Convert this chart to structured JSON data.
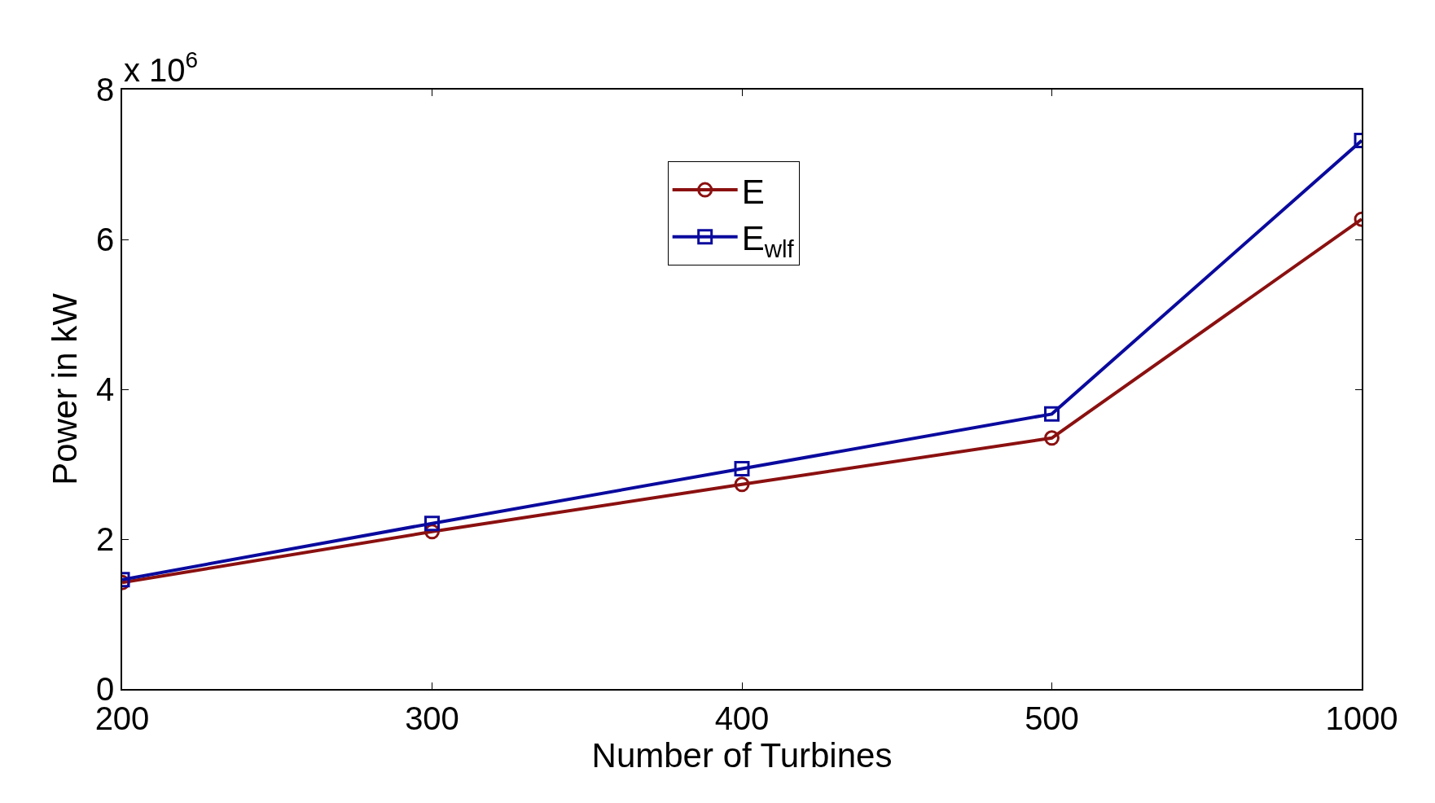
{
  "chart_data": {
    "type": "line",
    "xlabel": "Number of Turbines",
    "ylabel": "Power in kW",
    "categories": [
      "200",
      "300",
      "400",
      "500",
      "1000"
    ],
    "series": [
      {
        "name": "E",
        "color": "#8b1010",
        "marker": "circle",
        "values": [
          1.42,
          2.1,
          2.73,
          3.35,
          6.27
        ]
      },
      {
        "name": "E$_{wlf}$",
        "color": "#0a0a9e",
        "marker": "square",
        "values": [
          1.46,
          2.21,
          2.94,
          3.67,
          7.32
        ]
      }
    ],
    "ylim": [
      0,
      8
    ],
    "yticks": [
      0,
      2,
      4,
      6,
      8
    ],
    "annotations": [
      "x 10$^{6}$"
    ],
    "legend": "top",
    "line_style": "solid"
  }
}
